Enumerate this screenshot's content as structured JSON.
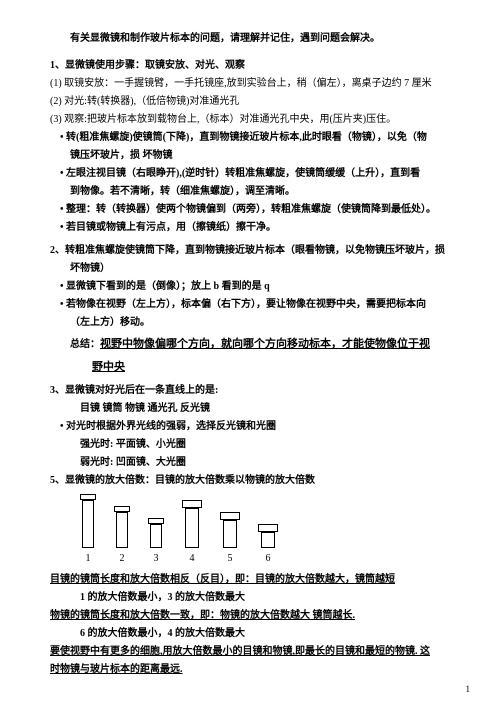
{
  "title": "有关显微镜和制作玻片标本的问题，请理解并记住，遇到问题会解决。",
  "sec1": {
    "head": "1、显微镜使用步骤：取镜安放、对光、观察",
    "l1": "(1) 取镜安放：一手握镜臂，一手托镜座,放到实验台上，稍（偏左），离桌子边约 7 厘米",
    "l2": "(2) 对光:转(转换器),（低倍物镜)对准通光孔",
    "l3": "(3) 观察:把玻片标本放到载物台上,（标本）对准通光孔中央，用(压片夹)压住。",
    "b1a": "转(粗准焦螺旋)使镜筒(下降)，直到物镜接近玻片标本,此时眼看（物镜），以免（物",
    "b1b": "镜压坏玻片，损 坏物镜",
    "b2a": "左眼注视目镜（右眼睁开),(逆时针）转粗准焦螺旋，使镜筒缓缓（上升），直到看",
    "b2b": "到物像。若不清晰，转（细准焦螺旋），调至清晰。",
    "b3": "整理：转（转换器）使两个物镜偏到（两旁），转粗准焦螺旋（使镜筒降到最低处）。",
    "b4": "若目镜或物镜上有污点，用（擦镜纸）擦干净。"
  },
  "sec2": {
    "head": "2、转粗准焦螺旋使镜筒下降，直到物镜接近玻片标本（眼看物镜，以免物镜压坏玻片，损",
    "head2": "坏物镜）",
    "b1": "显微镜下看到的是（倒像）；放上 b 看到的是 q",
    "b2a": "若物像在视野（左上方），标本偏（右下方），要让物像在视野中央，需要把标本向",
    "b2b": "（左上方）移动。",
    "sum1": "总结：",
    "sum2": "视野中物像偏哪个方向，就向哪个方向移动标本，才能使物像位于视",
    "sum3": "野中央"
  },
  "sec3": {
    "head": "3、显微镜对好光后在一条直线上的是:",
    "l1": "目镜    镜筒    物镜    通光孔   反光镜",
    "b1": "对光时根据外界光线的强弱，选择反光镜和光圈",
    "l2": "强光时: 平面镜、小光圈",
    "l3": "弱光时: 凹面镜、大光圈"
  },
  "sec5": {
    "head": "5、显微镜的放大倍数：目镜的放大倍数乘以物镜的放大倍数",
    "nums": [
      "1",
      "2",
      "3",
      "4",
      "5",
      "6"
    ],
    "l1": "目镜的镜筒长度和放大倍数相反（反目），即：目镜的放大倍数越大，镜筒越短",
    "l2": "1 的放大倍数最小，3 的放大倍数最大",
    "l3": "物镜的镜筒长度和放大倍数一致，即：物镜的放大倍数越大 镜筒越长.",
    "l4": "6 的放大倍数最小，4 的放大倍数最大",
    "l5": "要使视野中有更多的细胞,用放大倍数最小的目镜和物镜,即最长的目镜和最短的物镜. 这",
    "l6": "时物镜与玻片标本的距离最远."
  },
  "diagram": {
    "pieces": [
      {
        "cap_w": 16,
        "cap_h": 6,
        "tube_w": 12,
        "tube_h": 48
      },
      {
        "cap_w": 16,
        "cap_h": 6,
        "tube_w": 12,
        "tube_h": 36
      },
      {
        "cap_w": 16,
        "cap_h": 6,
        "tube_w": 12,
        "tube_h": 24
      },
      {
        "tube_w": 14,
        "tube_h": 40,
        "cap_w": 20,
        "cap_h": 8,
        "inverted": true
      },
      {
        "tube_w": 14,
        "tube_h": 28,
        "cap_w": 20,
        "cap_h": 8,
        "inverted": true
      },
      {
        "tube_w": 14,
        "tube_h": 16,
        "cap_w": 20,
        "cap_h": 8,
        "inverted": true
      }
    ]
  },
  "pagenum": "1"
}
